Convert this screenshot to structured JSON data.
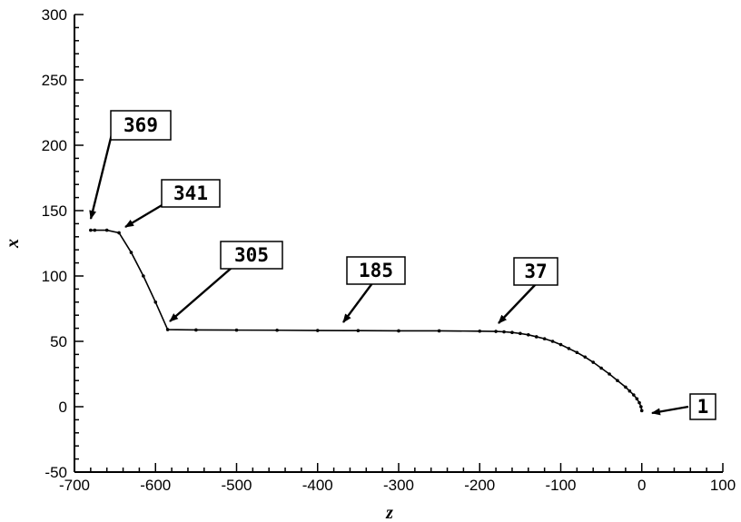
{
  "chart_data": {
    "type": "line",
    "title": "",
    "xlabel": "z",
    "ylabel": "x",
    "xlim": [
      -700,
      100
    ],
    "ylim": [
      -50,
      300
    ],
    "grid": false,
    "x_ticks": [
      -700,
      -600,
      -500,
      -400,
      -300,
      -200,
      -100,
      0,
      100
    ],
    "y_ticks": [
      -50,
      0,
      50,
      100,
      150,
      200,
      250,
      300
    ],
    "series": [
      {
        "x": [
          0,
          -1,
          -3,
          -6,
          -10,
          -15,
          -20,
          -30,
          -40,
          -50,
          -60,
          -70,
          -80,
          -90,
          -100,
          -110,
          -120,
          -130,
          -140,
          -150,
          -160,
          -170,
          -180,
          -200,
          -250,
          -300,
          -350,
          -400,
          -450,
          -500,
          -550,
          -585,
          -600,
          -615,
          -630,
          -645,
          -660,
          -675,
          -680
        ],
        "y": [
          -3,
          0,
          3,
          6,
          9,
          12,
          15,
          20,
          25,
          29.5,
          34,
          38,
          41.5,
          44.5,
          47.5,
          50,
          52,
          53.5,
          55,
          56,
          56.8,
          57.3,
          57.6,
          57.8,
          58,
          58,
          58.2,
          58.3,
          58.5,
          58.6,
          58.7,
          59,
          80,
          100,
          118,
          133,
          135,
          135,
          135
        ]
      }
    ],
    "annotations": [
      {
        "label": "369",
        "x": -678,
        "y": 137
      },
      {
        "label": "341",
        "x": -648,
        "y": 137
      },
      {
        "label": "305",
        "x": -583,
        "y": 62
      },
      {
        "label": "185",
        "x": -370,
        "y": 60
      },
      {
        "label": "37",
        "x": -180,
        "y": 60
      },
      {
        "label": "1",
        "x": 3,
        "y": -2
      }
    ]
  }
}
